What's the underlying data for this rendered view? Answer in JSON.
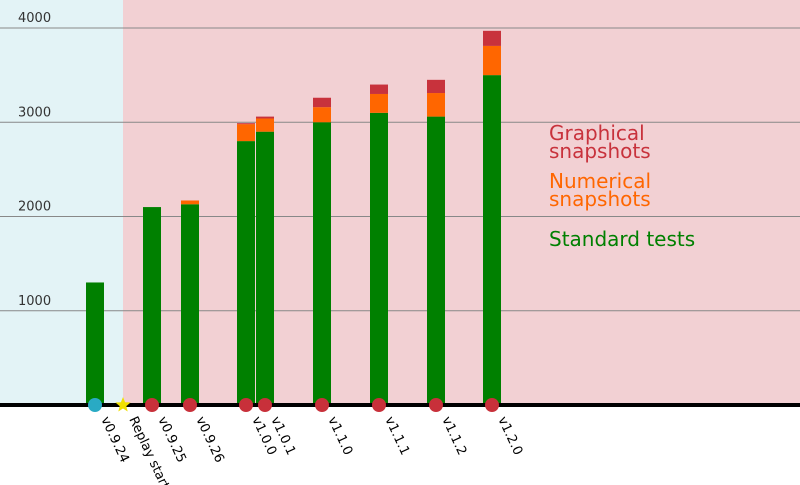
{
  "chart_data": {
    "type": "stacked-bar",
    "categories": [
      "v0.9.24",
      "Replay starts",
      "v0.9.25",
      "v0.9.26",
      "v1.0.0",
      "v1.0.1",
      "v1.1.0",
      "v1.1.1",
      "v1.1.2",
      "v1.2.0"
    ],
    "series": [
      {
        "name": "Standard tests",
        "color": "#008000",
        "values": [
          1300,
          null,
          2100,
          2130,
          2800,
          2900,
          3000,
          3100,
          3060,
          3500
        ]
      },
      {
        "name": "Numerical snapshots",
        "color": "#ff6600",
        "values": [
          null,
          null,
          null,
          40,
          180,
          140,
          160,
          200,
          250,
          310
        ]
      },
      {
        "name": "Graphical snapshots",
        "color": "#c8323c",
        "values": [
          null,
          null,
          null,
          null,
          10,
          20,
          100,
          100,
          140,
          160
        ]
      }
    ],
    "marker_colors": [
      "#29aac4",
      "#f0e000",
      "#c8303a",
      "#c8303a",
      "#c8303a",
      "#c8303a",
      "#c8303a",
      "#c8303a",
      "#c8303a",
      "#c8303a"
    ],
    "marker_shapes": [
      "circle",
      "star",
      "circle",
      "circle",
      "circle",
      "circle",
      "circle",
      "circle",
      "circle",
      "circle"
    ],
    "region_colors": [
      "#e3f3f6",
      "#f2d0d3"
    ],
    "ylim": [
      0,
      4000
    ],
    "yticks": [
      1000,
      2000,
      3000,
      4000
    ],
    "grid": true
  }
}
